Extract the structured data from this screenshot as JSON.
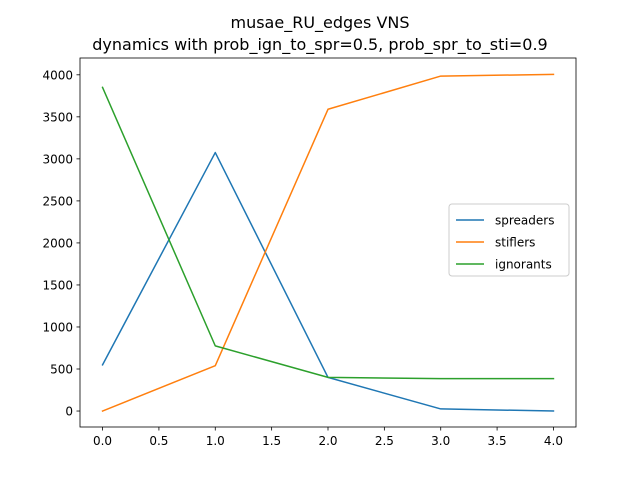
{
  "chart_data": {
    "type": "line",
    "title": "musae_RU_edges VNS",
    "subtitle": "dynamics with prob_ign_to_spr=0.5, prob_spr_to_sti=0.9",
    "xlabel": "",
    "ylabel": "",
    "x": [
      0,
      1,
      2,
      3,
      4
    ],
    "xlim": [
      -0.2,
      4.2
    ],
    "ylim": [
      -190,
      4200
    ],
    "x_ticks": [
      0.0,
      0.5,
      1.0,
      1.5,
      2.0,
      2.5,
      3.0,
      3.5,
      4.0
    ],
    "x_tick_labels": [
      "0.0",
      "0.5",
      "1.0",
      "1.5",
      "2.0",
      "2.5",
      "3.0",
      "3.5",
      "4.0"
    ],
    "y_ticks": [
      0,
      500,
      1000,
      1500,
      2000,
      2500,
      3000,
      3500,
      4000
    ],
    "y_tick_labels": [
      "0",
      "500",
      "1000",
      "1500",
      "2000",
      "2500",
      "3000",
      "3500",
      "4000"
    ],
    "grid": false,
    "legend_position": "center-right",
    "series": [
      {
        "name": "spreaders",
        "color": "#1f77b4",
        "values": [
          550,
          3075,
          400,
          25,
          0
        ]
      },
      {
        "name": "stiflers",
        "color": "#ff7f0e",
        "values": [
          0,
          540,
          3590,
          3985,
          4005
        ]
      },
      {
        "name": "ignorants",
        "color": "#2ca02c",
        "values": [
          3850,
          775,
          400,
          385,
          385
        ]
      }
    ]
  }
}
